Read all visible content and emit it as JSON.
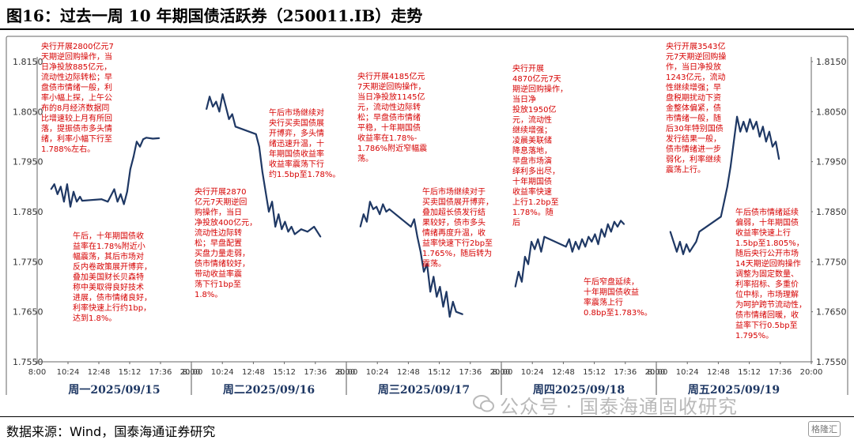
{
  "header": {
    "title": "图16：过去一周 10 年期国债活跃券（250011.IB）走势"
  },
  "footer": {
    "source": "数据来源：Wind，国泰海通证券研究"
  },
  "watermark": {
    "text": "公众号 · 国泰海通固收研究",
    "logo": "格隆汇",
    "icon": "wechat-icon"
  },
  "colors": {
    "line": "#1f3864",
    "annotation": "#d60000",
    "day_label": "#1f3864"
  },
  "chart_data": {
    "type": "line",
    "y_ticks": [
      "1.8150",
      "1.8050",
      "1.7950",
      "1.7850",
      "1.7750",
      "1.7650",
      "1.7550"
    ],
    "ylim": [
      1.755,
      1.815
    ],
    "x_ticks": [
      "8:00",
      "10:24",
      "12:48",
      "15:12",
      "17:36",
      "20:00"
    ],
    "grid": false,
    "panels": [
      {
        "label": "周一2025/09/15",
        "series": [
          {
            "x": "9:05",
            "y": 1.7895
          },
          {
            "x": "9:20",
            "y": 1.7905
          },
          {
            "x": "9:35",
            "y": 1.7885
          },
          {
            "x": "9:50",
            "y": 1.79
          },
          {
            "x": "10:05",
            "y": 1.787
          },
          {
            "x": "10:20",
            "y": 1.7905
          },
          {
            "x": "10:35",
            "y": 1.786
          },
          {
            "x": "10:50",
            "y": 1.789
          },
          {
            "x": "11:05",
            "y": 1.787
          },
          {
            "x": "11:20",
            "y": 1.788
          },
          {
            "x": "11:30",
            "y": 1.7872
          },
          {
            "x": "13:00",
            "y": 1.7875
          },
          {
            "x": "13:30",
            "y": 1.787
          },
          {
            "x": "14:00",
            "y": 1.7895
          },
          {
            "x": "14:15",
            "y": 1.787
          },
          {
            "x": "14:30",
            "y": 1.7885
          },
          {
            "x": "14:45",
            "y": 1.7865
          },
          {
            "x": "15:00",
            "y": 1.789
          },
          {
            "x": "15:15",
            "y": 1.7935
          },
          {
            "x": "15:30",
            "y": 1.796
          },
          {
            "x": "15:45",
            "y": 1.799
          },
          {
            "x": "16:00",
            "y": 1.798
          },
          {
            "x": "16:15",
            "y": 1.7995
          },
          {
            "x": "16:30",
            "y": 1.7998
          },
          {
            "x": "17:00",
            "y": 1.7996
          },
          {
            "x": "17:30",
            "y": 1.7997
          }
        ],
        "annotations": [
          [
            "央行开展2800亿元7",
            "天期逆回购操作，当",
            "日净投放885亿元，",
            "流动性边际转松；早",
            "盘债市情绪一般，利",
            "率小幅上探，上午公",
            "布的8月经济数据同",
            "比增速较上月有所回",
            "落，提振债市多头情",
            "绪，利率小幅下行至",
            "1.788%左右。"
          ],
          [
            "午后，十年期国债收",
            "益率在1.78%附近小",
            "幅震荡，其后市场对",
            "反内卷政策展开博弈，",
            "叠加美国财长贝森特",
            "称中美取得良好技术",
            "进展，债市情绪良好，",
            "利率快速上行约1bp，",
            "达到1.8%。"
          ]
        ]
      },
      {
        "label": "周二2025/09/16",
        "series": [
          {
            "x": "9:10",
            "y": 1.8055
          },
          {
            "x": "9:25",
            "y": 1.808
          },
          {
            "x": "9:40",
            "y": 1.806
          },
          {
            "x": "9:55",
            "y": 1.807
          },
          {
            "x": "10:10",
            "y": 1.805
          },
          {
            "x": "10:25",
            "y": 1.8085
          },
          {
            "x": "10:40",
            "y": 1.806
          },
          {
            "x": "10:55",
            "y": 1.8035
          },
          {
            "x": "11:10",
            "y": 1.8045
          },
          {
            "x": "11:25",
            "y": 1.802
          },
          {
            "x": "13:00",
            "y": 1.8005
          },
          {
            "x": "13:15",
            "y": 1.798
          },
          {
            "x": "13:30",
            "y": 1.793
          },
          {
            "x": "13:45",
            "y": 1.789
          },
          {
            "x": "14:00",
            "y": 1.785
          },
          {
            "x": "14:15",
            "y": 1.787
          },
          {
            "x": "14:30",
            "y": 1.782
          },
          {
            "x": "14:45",
            "y": 1.7845
          },
          {
            "x": "15:00",
            "y": 1.7815
          },
          {
            "x": "15:15",
            "y": 1.783
          },
          {
            "x": "15:30",
            "y": 1.781
          },
          {
            "x": "15:45",
            "y": 1.782
          },
          {
            "x": "16:00",
            "y": 1.7805
          },
          {
            "x": "16:30",
            "y": 1.7815
          },
          {
            "x": "17:00",
            "y": 1.781
          },
          {
            "x": "17:30",
            "y": 1.782
          },
          {
            "x": "18:00",
            "y": 1.78
          }
        ],
        "annotations": [
          [
            "午后市场继续对",
            "央行买卖国债展",
            "开博弈，多头情",
            "绪迅速升温，十",
            "年期国债收益率",
            "收益率震荡下行",
            "约1.5bp至1.78%。"
          ],
          [
            "央行开展2870",
            "亿元7天期逆回",
            "购操作，当日",
            "净投放400亿元，",
            "流动性边际转",
            "松；早盘配置",
            "买盘力量走弱，",
            "债市情绪较好，",
            "带动收益率震",
            "荡下行1bp至",
            "1.8%。"
          ]
        ]
      },
      {
        "label": "周三2025/09/17",
        "series": [
          {
            "x": "9:05",
            "y": 1.782
          },
          {
            "x": "9:20",
            "y": 1.7845
          },
          {
            "x": "9:35",
            "y": 1.783
          },
          {
            "x": "9:50",
            "y": 1.787
          },
          {
            "x": "10:05",
            "y": 1.7855
          },
          {
            "x": "10:20",
            "y": 1.786
          },
          {
            "x": "10:35",
            "y": 1.7845
          },
          {
            "x": "10:50",
            "y": 1.7865
          },
          {
            "x": "11:05",
            "y": 1.785
          },
          {
            "x": "11:20",
            "y": 1.7855
          },
          {
            "x": "13:00",
            "y": 1.782
          },
          {
            "x": "13:15",
            "y": 1.7835
          },
          {
            "x": "13:30",
            "y": 1.78
          },
          {
            "x": "13:45",
            "y": 1.777
          },
          {
            "x": "14:00",
            "y": 1.773
          },
          {
            "x": "14:15",
            "y": 1.7745
          },
          {
            "x": "14:30",
            "y": 1.769
          },
          {
            "x": "14:45",
            "y": 1.772
          },
          {
            "x": "15:00",
            "y": 1.768
          },
          {
            "x": "15:15",
            "y": 1.77
          },
          {
            "x": "15:30",
            "y": 1.766
          },
          {
            "x": "15:45",
            "y": 1.769
          },
          {
            "x": "16:00",
            "y": 1.764
          },
          {
            "x": "16:15",
            "y": 1.767
          },
          {
            "x": "16:30",
            "y": 1.765
          },
          {
            "x": "17:00",
            "y": 1.7645
          }
        ],
        "annotations": [
          [
            "央行开展4185亿元",
            "7天期逆回购操作，",
            "当日净投放1145亿",
            "元，流动性边际转",
            "松；早盘债市情绪",
            "平稳，十年期国债",
            "收益率在1.78%-",
            "1.786%附近窄幅震",
            "荡。"
          ],
          [
            "午后市场继续对于",
            "买卖国债展开博弈，",
            "叠加超长债发行结",
            "果较好，债市多头",
            "情绪再度升温，收",
            "益率快速下行2bp至",
            "1.765%，随后转为",
            "震荡。"
          ]
        ]
      },
      {
        "label": "周四2025/09/18",
        "series": [
          {
            "x": "9:05",
            "y": 1.77
          },
          {
            "x": "9:20",
            "y": 1.773
          },
          {
            "x": "9:35",
            "y": 1.771
          },
          {
            "x": "9:50",
            "y": 1.776
          },
          {
            "x": "10:05",
            "y": 1.7745
          },
          {
            "x": "10:20",
            "y": 1.779
          },
          {
            "x": "10:35",
            "y": 1.7775
          },
          {
            "x": "10:50",
            "y": 1.7795
          },
          {
            "x": "11:05",
            "y": 1.777
          },
          {
            "x": "11:20",
            "y": 1.78
          },
          {
            "x": "13:00",
            "y": 1.778
          },
          {
            "x": "13:15",
            "y": 1.7795
          },
          {
            "x": "13:30",
            "y": 1.777
          },
          {
            "x": "13:45",
            "y": 1.779
          },
          {
            "x": "14:00",
            "y": 1.7775
          },
          {
            "x": "14:15",
            "y": 1.7795
          },
          {
            "x": "14:30",
            "y": 1.778
          },
          {
            "x": "14:45",
            "y": 1.78
          },
          {
            "x": "15:00",
            "y": 1.779
          },
          {
            "x": "15:15",
            "y": 1.7805
          },
          {
            "x": "15:30",
            "y": 1.7785
          },
          {
            "x": "15:45",
            "y": 1.7815
          },
          {
            "x": "16:00",
            "y": 1.78
          },
          {
            "x": "16:15",
            "y": 1.7825
          },
          {
            "x": "16:30",
            "y": 1.781
          },
          {
            "x": "16:45",
            "y": 1.783
          },
          {
            "x": "17:00",
            "y": 1.782
          },
          {
            "x": "17:15",
            "y": 1.7832
          },
          {
            "x": "17:30",
            "y": 1.7825
          }
        ],
        "annotations": [
          [
            "央行开展",
            "4870亿元7天",
            "期逆回购操作，",
            "当日净",
            "投放1950亿",
            "元，流动性",
            "继续增强；",
            "凌晨美联储",
            "降息落地，",
            "早盘市场演",
            "绎利多出尽，",
            "十年期国债",
            "收益率快速",
            "上行1.2bp至",
            "1.78%。随",
            "后"
          ],
          [
            "午后窄盘延续，",
            "十年期国债收益",
            "率震荡上行",
            "0.8bp至1.783%。"
          ]
        ]
      },
      {
        "label": "周五2025/09/19",
        "series": [
          {
            "x": "9:05",
            "y": 1.781
          },
          {
            "x": "9:20",
            "y": 1.779
          },
          {
            "x": "9:35",
            "y": 1.777
          },
          {
            "x": "9:50",
            "y": 1.779
          },
          {
            "x": "10:05",
            "y": 1.7765
          },
          {
            "x": "10:20",
            "y": 1.7785
          },
          {
            "x": "10:35",
            "y": 1.777
          },
          {
            "x": "10:50",
            "y": 1.778
          },
          {
            "x": "11:05",
            "y": 1.779
          },
          {
            "x": "11:20",
            "y": 1.781
          },
          {
            "x": "13:00",
            "y": 1.784
          },
          {
            "x": "13:15",
            "y": 1.787
          },
          {
            "x": "13:30",
            "y": 1.79
          },
          {
            "x": "13:45",
            "y": 1.794
          },
          {
            "x": "14:00",
            "y": 1.799
          },
          {
            "x": "14:15",
            "y": 1.804
          },
          {
            "x": "14:30",
            "y": 1.801
          },
          {
            "x": "14:45",
            "y": 1.803
          },
          {
            "x": "15:00",
            "y": 1.801
          },
          {
            "x": "15:15",
            "y": 1.8035
          },
          {
            "x": "15:30",
            "y": 1.8015
          },
          {
            "x": "15:45",
            "y": 1.803
          },
          {
            "x": "16:00",
            "y": 1.8
          },
          {
            "x": "16:15",
            "y": 1.802
          },
          {
            "x": "16:30",
            "y": 1.799
          },
          {
            "x": "16:45",
            "y": 1.801
          },
          {
            "x": "17:00",
            "y": 1.798
          },
          {
            "x": "17:15",
            "y": 1.799
          },
          {
            "x": "17:30",
            "y": 1.7955
          }
        ],
        "annotations": [
          [
            "央行开展3543亿",
            "元7天期逆回购操",
            "作，当日净投放",
            "1243亿元，流动",
            "性继续增强；早",
            "盘税期扰动下资",
            "金整体偏紧，债",
            "市情绪一般，随",
            "后30年特别国债",
            "发行结果一般，",
            "债市情绪进一步",
            "弱化，利率继续",
            "震荡上行。"
          ],
          [
            "午后债市情绪延续",
            "偏弱，十年期国债",
            "收益率快速上行",
            "1.5bp至1.805%，",
            "随后央行公开市场",
            "14天期逆回购操作",
            "调整为固定数量、",
            "利率招标、多重价",
            "位中标，市场理解",
            "为呵护跨节流动性，",
            "债市情绪回暖，收",
            "益率下行0.5bp至",
            "1.795%。"
          ]
        ]
      }
    ]
  }
}
